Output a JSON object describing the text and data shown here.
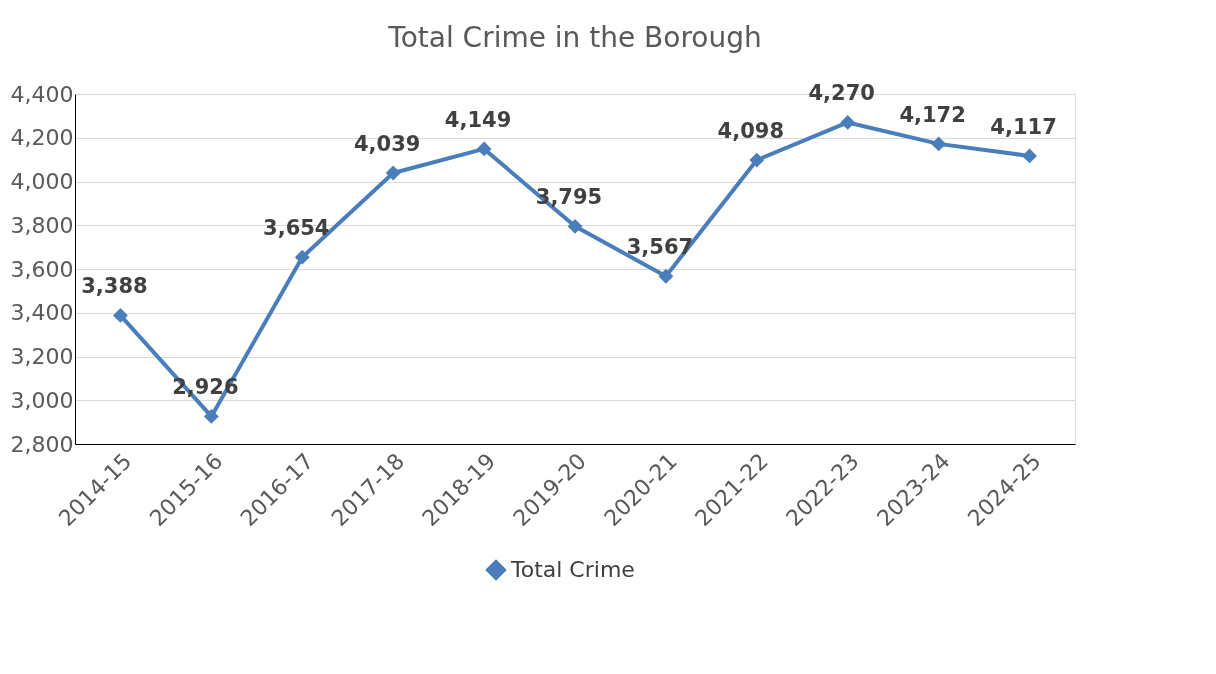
{
  "chart_data": {
    "type": "line",
    "title": "Total Crime in the Borough",
    "categories": [
      "2014-15",
      "2015-16",
      "2016-17",
      "2017-18",
      "2018-19",
      "2019-20",
      "2020-21",
      "2021-22",
      "2022-23",
      "2023-24",
      "2024-25"
    ],
    "series": [
      {
        "name": "Total Crime",
        "color": "#4a7ebb",
        "values": [
          3388,
          2926,
          3654,
          4039,
          4149,
          3795,
          3567,
          4098,
          4270,
          4172,
          4117
        ],
        "value_labels": [
          "3,388",
          "2,926",
          "3,654",
          "4,039",
          "4,149",
          "3,795",
          "3,567",
          "4,098",
          "4,270",
          "4,172",
          "4,117"
        ]
      }
    ],
    "ylim": [
      2800,
      4400
    ],
    "yticks": [
      {
        "value": 2800,
        "label": "2,800"
      },
      {
        "value": 3000,
        "label": "3,000"
      },
      {
        "value": 3200,
        "label": "3,200"
      },
      {
        "value": 3400,
        "label": "3,400"
      },
      {
        "value": 3600,
        "label": "3,600"
      },
      {
        "value": 3800,
        "label": "3,800"
      },
      {
        "value": 4000,
        "label": "4,000"
      },
      {
        "value": 4200,
        "label": "4,200"
      },
      {
        "value": 4400,
        "label": "4,400"
      }
    ],
    "grid": "y",
    "legend": "bottom",
    "marker": "diamond",
    "line_style": "solid"
  }
}
